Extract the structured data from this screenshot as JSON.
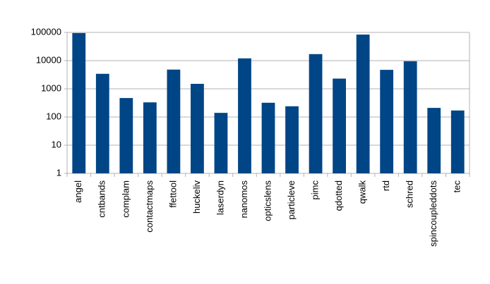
{
  "chart_data": {
    "type": "bar",
    "categories": [
      "angel",
      "cntbands",
      "complam",
      "contactmaps",
      "ffettool",
      "huckeliv",
      "laserdyn",
      "nanomos",
      "opticslens",
      "particleve",
      "pimc",
      "qdotted",
      "qwalk",
      "rtd",
      "schred",
      "spincoupleddots",
      "tec"
    ],
    "values": [
      95000,
      3400,
      470,
      330,
      4800,
      1500,
      140,
      12000,
      320,
      240,
      17000,
      2300,
      84000,
      4700,
      9500,
      210,
      170
    ],
    "color": "#004586",
    "ylim": [
      1,
      100000
    ],
    "yticks": [
      1,
      10,
      100,
      1000,
      10000,
      100000
    ],
    "log_scale": true,
    "grid": true
  }
}
